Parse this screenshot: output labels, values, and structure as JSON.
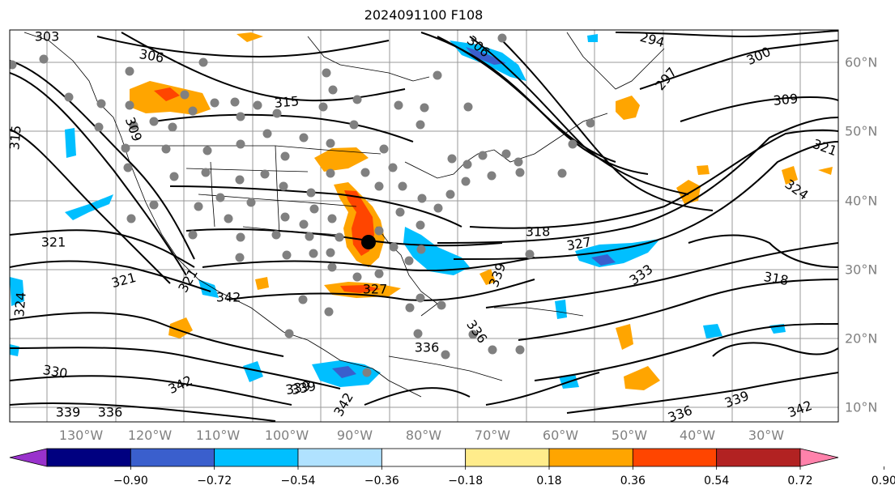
{
  "title": "2024091100 F108",
  "map": {
    "lon_labels": [
      "130°W",
      "120°W",
      "110°W",
      "100°W",
      "90°W",
      "80°W",
      "70°W",
      "60°W",
      "50°W",
      "40°W",
      "30°W"
    ],
    "lat_labels": [
      "60°N",
      "50°N",
      "40°N",
      "30°N",
      "20°N",
      "10°N"
    ],
    "contour_labels": [
      "303",
      "306",
      "315",
      "309",
      "315",
      "306",
      "294",
      "297",
      "300",
      "309",
      "321",
      "324",
      "321",
      "321",
      "318",
      "327",
      "333",
      "318",
      "339",
      "324",
      "321",
      "342",
      "327",
      "339",
      "336",
      "336",
      "330",
      "342",
      "339",
      "339",
      "336",
      "342",
      "336",
      "339",
      "342"
    ],
    "marker": {
      "lon": -87.5,
      "lat": 34.5
    }
  },
  "colorbar": {
    "ticks": [
      "−0.90",
      "−0.72",
      "−0.54",
      "−0.36",
      "−0.18",
      "0.18",
      "0.36",
      "0.54",
      "0.72",
      "0.90"
    ],
    "colors": [
      "#9932cc",
      "#000080",
      "#3a5fcd",
      "#00bfff",
      "#b0e2ff",
      "#ffffff",
      "#ffec8b",
      "#ffa500",
      "#ff4500",
      "#b22222",
      "#ff82ab"
    ]
  }
}
